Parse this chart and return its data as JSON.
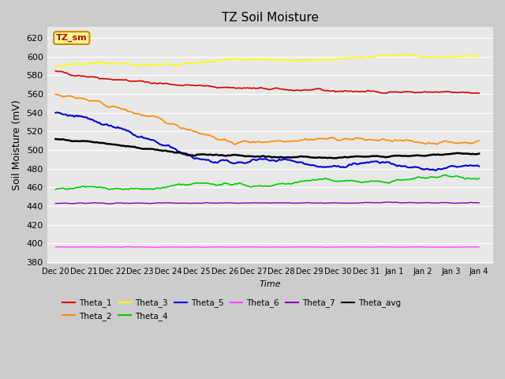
{
  "title": "TZ Soil Moisture",
  "xlabel": "Time",
  "ylabel": "Soil Moisture (mV)",
  "series_order": [
    "Theta_1",
    "Theta_2",
    "Theta_3",
    "Theta_4",
    "Theta_5",
    "Theta_6",
    "Theta_7",
    "Theta_avg"
  ],
  "series": {
    "Theta_1": {
      "color": "#dd0000"
    },
    "Theta_2": {
      "color": "#ff8800"
    },
    "Theta_3": {
      "color": "#ffff00"
    },
    "Theta_4": {
      "color": "#00cc00"
    },
    "Theta_5": {
      "color": "#0000dd"
    },
    "Theta_6": {
      "color": "#ff44ff"
    },
    "Theta_7": {
      "color": "#8800aa"
    },
    "Theta_avg": {
      "color": "#000000"
    }
  },
  "xtick_labels": [
    "Dec 20",
    "Dec 21",
    "Dec 22",
    "Dec 23",
    "Dec 24",
    "Dec 25",
    "Dec 26",
    "Dec 27",
    "Dec 28",
    "Dec 29",
    "Dec 30",
    "Dec 31",
    "Jan 1",
    "Jan 2",
    "Jan 3",
    "Jan 4"
  ],
  "ytick_values": [
    380,
    400,
    420,
    440,
    460,
    480,
    500,
    520,
    540,
    560,
    580,
    600,
    620
  ],
  "ylim": [
    378,
    632
  ],
  "legend_box_label": "TZ_sm",
  "legend_box_facecolor": "#ffff99",
  "legend_box_edgecolor": "#cc8800",
  "legend_row1": [
    "Theta_1",
    "Theta_2",
    "Theta_3",
    "Theta_4",
    "Theta_5",
    "Theta_6"
  ],
  "legend_row2": [
    "Theta_7",
    "Theta_avg"
  ],
  "fig_facecolor": "#cccccc",
  "ax_facecolor": "#e8e8e8"
}
